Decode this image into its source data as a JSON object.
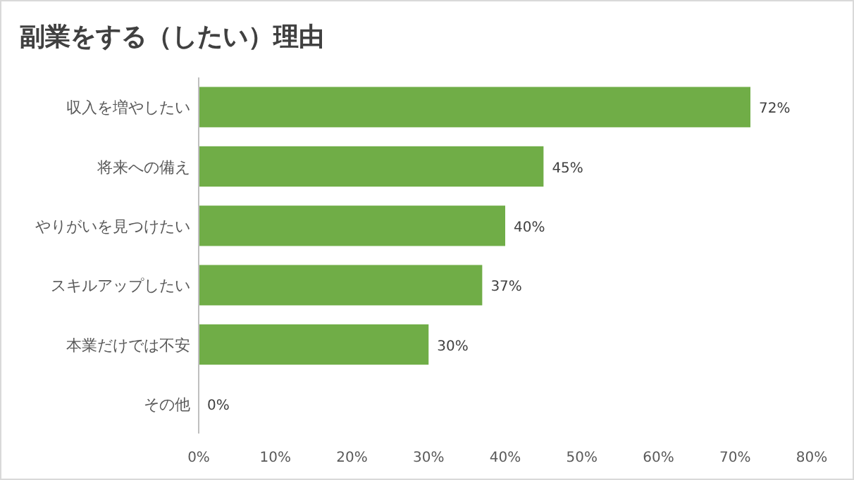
{
  "chart_data": {
    "type": "bar",
    "orientation": "horizontal",
    "title": "副業をする（したい）理由",
    "categories": [
      "収入を増やしたい",
      "将来への備え",
      "やりがいを見つけたい",
      "スキルアップしたい",
      "本業だけでは不安",
      "その他"
    ],
    "values": [
      72,
      45,
      40,
      37,
      30,
      0
    ],
    "value_labels": [
      "72%",
      "45%",
      "40%",
      "37%",
      "30%",
      "0%"
    ],
    "color": "#70ad47",
    "xlim": [
      0,
      80
    ],
    "xticks": [
      {
        "value": 0,
        "label": "0%"
      },
      {
        "value": 10,
        "label": "10%"
      },
      {
        "value": 20,
        "label": "20%"
      },
      {
        "value": 30,
        "label": "30%"
      },
      {
        "value": 40,
        "label": "40%"
      },
      {
        "value": 50,
        "label": "50%"
      },
      {
        "value": 60,
        "label": "60%"
      },
      {
        "value": 70,
        "label": "70%"
      },
      {
        "value": 80,
        "label": "80%"
      }
    ],
    "grid": false
  }
}
